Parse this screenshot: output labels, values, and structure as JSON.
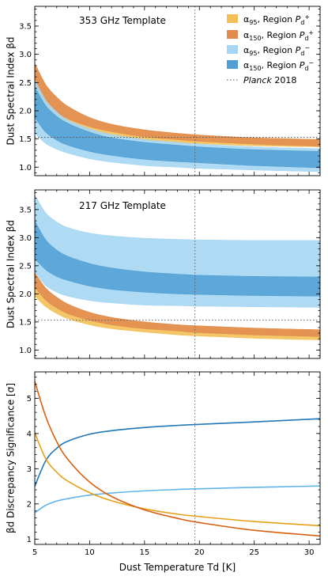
{
  "chart_data": [
    {
      "type": "area",
      "title": "353 GHz Template",
      "xlabel": "",
      "ylabel": "Dust Spectral Index βd",
      "xlim": [
        5,
        31
      ],
      "ylim": [
        0.85,
        3.85
      ],
      "yticks": [
        1.0,
        1.5,
        2.0,
        2.5,
        3.0,
        3.5
      ],
      "ytick_labels": [
        "1.0",
        "1.5",
        "2.0",
        "2.5",
        "3.0",
        "3.5"
      ],
      "grid": false,
      "legend_position": "top-right",
      "x": [
        5,
        6,
        7,
        8,
        10,
        12,
        15,
        18,
        20,
        25,
        31
      ],
      "series": [
        {
          "name": "α95, Region Pd+",
          "color": "#f2c057",
          "lower": [
            2.18,
            1.96,
            1.84,
            1.74,
            1.63,
            1.55,
            1.48,
            1.44,
            1.42,
            1.38,
            1.36
          ],
          "upper": [
            2.84,
            2.46,
            2.24,
            2.08,
            1.88,
            1.76,
            1.66,
            1.6,
            1.57,
            1.52,
            1.49
          ]
        },
        {
          "name": "α150, Region Pd+",
          "color": "#e08a4f",
          "lower": [
            2.45,
            2.16,
            1.98,
            1.86,
            1.72,
            1.63,
            1.54,
            1.49,
            1.46,
            1.41,
            1.37
          ],
          "upper": [
            2.84,
            2.46,
            2.24,
            2.08,
            1.88,
            1.76,
            1.66,
            1.6,
            1.57,
            1.52,
            1.49
          ]
        },
        {
          "name": "α95, Region Pd−",
          "color": "#a6d6f3",
          "lower": [
            1.6,
            1.42,
            1.32,
            1.25,
            1.15,
            1.09,
            1.03,
            1.0,
            0.98,
            0.95,
            0.92
          ],
          "upper": [
            2.55,
            2.19,
            1.98,
            1.84,
            1.68,
            1.58,
            1.49,
            1.44,
            1.41,
            1.36,
            1.33
          ]
        },
        {
          "name": "α150, Region Pd−",
          "color": "#4f9fd4",
          "lower": [
            1.88,
            1.62,
            1.48,
            1.39,
            1.28,
            1.21,
            1.14,
            1.1,
            1.08,
            1.03,
            0.99
          ],
          "upper": [
            2.42,
            2.09,
            1.9,
            1.78,
            1.62,
            1.52,
            1.44,
            1.39,
            1.36,
            1.31,
            1.28
          ]
        }
      ],
      "reference_lines": {
        "vertical_x": 19.6,
        "horizontal_y": 1.53,
        "name": "Planck 2018"
      }
    },
    {
      "type": "area",
      "title": "217 GHz Template",
      "xlabel": "",
      "ylabel": "Dust Spectral Index βd",
      "xlim": [
        5,
        31
      ],
      "ylim": [
        0.85,
        3.85
      ],
      "yticks": [
        1.0,
        1.5,
        2.0,
        2.5,
        3.0,
        3.5
      ],
      "ytick_labels": [
        "1.0",
        "1.5",
        "2.0",
        "2.5",
        "3.0",
        "3.5"
      ],
      "grid": false,
      "x": [
        5,
        6,
        7,
        8,
        10,
        12,
        15,
        18,
        20,
        25,
        31
      ],
      "series": [
        {
          "name": "α95, Region Pd+",
          "color": "#f2c057",
          "lower": [
            1.96,
            1.77,
            1.65,
            1.56,
            1.45,
            1.38,
            1.32,
            1.27,
            1.25,
            1.21,
            1.18
          ],
          "upper": [
            2.38,
            2.1,
            1.94,
            1.82,
            1.67,
            1.58,
            1.5,
            1.45,
            1.43,
            1.39,
            1.36
          ]
        },
        {
          "name": "α150, Region Pd+",
          "color": "#e08a4f",
          "lower": [
            2.12,
            1.89,
            1.75,
            1.65,
            1.53,
            1.45,
            1.38,
            1.34,
            1.31,
            1.27,
            1.24
          ],
          "upper": [
            2.38,
            2.1,
            1.94,
            1.82,
            1.67,
            1.58,
            1.5,
            1.45,
            1.43,
            1.39,
            1.36
          ]
        },
        {
          "name": "α95, Region Pd−",
          "color": "#a6d6f3",
          "lower": [
            2.4,
            2.15,
            2.03,
            1.96,
            1.88,
            1.84,
            1.8,
            1.79,
            1.78,
            1.77,
            1.76
          ],
          "upper": [
            3.76,
            3.44,
            3.28,
            3.18,
            3.08,
            3.03,
            2.99,
            2.97,
            2.96,
            2.95,
            2.95
          ]
        },
        {
          "name": "α150, Region Pd−",
          "color": "#4f9fd4",
          "lower": [
            2.63,
            2.43,
            2.31,
            2.24,
            2.14,
            2.08,
            2.03,
            2.0,
            1.99,
            1.97,
            1.96
          ],
          "upper": [
            3.3,
            2.96,
            2.78,
            2.67,
            2.54,
            2.46,
            2.39,
            2.35,
            2.33,
            2.31,
            2.3
          ]
        }
      ],
      "reference_lines": {
        "vertical_x": 19.6,
        "horizontal_y": 1.53,
        "name": "Planck 2018"
      }
    },
    {
      "type": "line",
      "title": "",
      "xlabel": "Dust Temperature Td [K]",
      "ylabel": "βd Discrepancy Significance [σ]",
      "xlim": [
        5,
        31
      ],
      "ylim": [
        0.85,
        5.75
      ],
      "xticks": [
        5,
        10,
        15,
        20,
        25,
        30
      ],
      "xtick_labels": [
        "5",
        "10",
        "15",
        "20",
        "25",
        "30"
      ],
      "yticks": [
        1,
        2,
        3,
        4,
        5
      ],
      "ytick_labels": [
        "1",
        "2",
        "3",
        "4",
        "5"
      ],
      "grid": false,
      "x": [
        5,
        6,
        7,
        8,
        10,
        12,
        15,
        18,
        20,
        25,
        31
      ],
      "series": [
        {
          "color": "#1f77b4",
          "values": [
            2.5,
            3.23,
            3.58,
            3.78,
            3.98,
            4.08,
            4.17,
            4.23,
            4.26,
            4.33,
            4.42
          ]
        },
        {
          "color": "#62b4e8",
          "values": [
            1.75,
            1.96,
            2.08,
            2.15,
            2.25,
            2.31,
            2.37,
            2.41,
            2.43,
            2.47,
            2.51
          ]
        },
        {
          "color": "#e6a11a",
          "values": [
            4.02,
            3.28,
            2.9,
            2.65,
            2.32,
            2.09,
            1.86,
            1.71,
            1.64,
            1.5,
            1.38
          ]
        },
        {
          "color": "#d95f0e",
          "values": [
            5.48,
            4.48,
            3.77,
            3.27,
            2.62,
            2.21,
            1.83,
            1.59,
            1.47,
            1.25,
            1.09
          ]
        }
      ],
      "reference_lines": {
        "vertical_x": 19.6
      }
    }
  ]
}
